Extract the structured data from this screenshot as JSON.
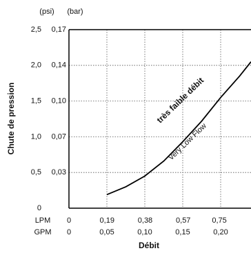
{
  "chart_data": {
    "type": "line",
    "ylabel": "Chute de pression",
    "xlabel": "Débit",
    "yunit": "(psi)",
    "y2unit": "(bar)",
    "xunit": "GPM",
    "x2unit": "LPM",
    "annotations": [
      "très faible débit",
      "Very Low Flow"
    ],
    "xlim": [
      0,
      0.24
    ],
    "xticks": [
      0,
      {
        "value": 0.05,
        "label": "0,05"
      },
      {
        "value": 0.1,
        "label": "0,10"
      },
      {
        "value": 0.15,
        "label": "0,15"
      },
      {
        "value": 0.2,
        "label": "0,20"
      }
    ],
    "x2lim": [
      0,
      0.908
    ],
    "x2ticks": [
      0,
      {
        "value": 0.19,
        "label": "0,19"
      },
      {
        "value": 0.38,
        "label": "0,38"
      },
      {
        "value": 0.57,
        "label": "0,57"
      },
      {
        "value": 0.75,
        "label": "0,75"
      }
    ],
    "ylim": [
      0,
      2.5
    ],
    "yticks": [
      0,
      {
        "value": 0.5,
        "label": "0,5"
      },
      {
        "value": 1.0,
        "label": "1,0"
      },
      {
        "value": 1.5,
        "label": "1,5"
      },
      {
        "value": 2.0,
        "label": "2,0"
      },
      {
        "value": 2.5,
        "label": "2,5"
      }
    ],
    "y2lim": [
      0,
      0.1724
    ],
    "y2ticks": [
      {
        "value": 0.0345,
        "label": "0,03"
      },
      {
        "value": 0.0689,
        "label": "0,07"
      },
      {
        "value": 0.1034,
        "label": "0,10"
      },
      {
        "value": 0.1379,
        "label": "0,14"
      },
      {
        "value": 0.1724,
        "label": "0,17"
      }
    ],
    "grid": true,
    "series": [
      {
        "color": "#000000",
        "x": [
          0.05,
          0.075,
          0.1,
          0.125,
          0.15,
          0.175,
          0.2,
          0.225,
          0.24
        ],
        "values": [
          0.19,
          0.3,
          0.45,
          0.66,
          0.93,
          1.22,
          1.55,
          1.85,
          2.05
        ]
      }
    ]
  }
}
